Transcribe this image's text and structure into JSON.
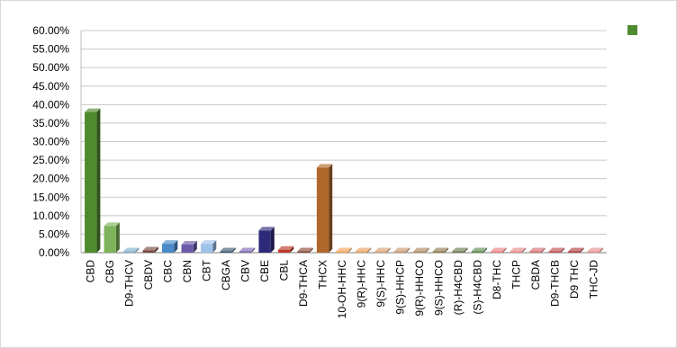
{
  "chart_data": {
    "type": "bar",
    "title": "",
    "xlabel": "",
    "ylabel": "",
    "ylim": [
      0,
      0.6
    ],
    "yticks": [
      0,
      0.05,
      0.1,
      0.15,
      0.2,
      0.25,
      0.3,
      0.35,
      0.4,
      0.45,
      0.5,
      0.55,
      0.6
    ],
    "ytick_labels": [
      "0.00%",
      "5.00%",
      "10.00%",
      "15.00%",
      "20.00%",
      "25.00%",
      "30.00%",
      "35.00%",
      "40.00%",
      "45.00%",
      "50.00%",
      "55.00%",
      "60.00%"
    ],
    "grid": true,
    "legend": {
      "position": "top-right",
      "color": "#4f8a2e"
    },
    "categories": [
      "CBD",
      "CBG",
      "D9-THCV",
      "CBDV",
      "CBC",
      "CBN",
      "CBT",
      "CBGA",
      "CBV",
      "CBE",
      "CBL",
      "D9-THCA",
      "THCX",
      "10-OH-HHC",
      "9(R)-HHC",
      "9(S)-HHC",
      "9(S)-HHCP",
      "9(R)-HHCO",
      "9(S)-HHCO",
      "(R)-H4CBD",
      "(S)-H4CBD",
      "D8-THC",
      "THCP",
      "CBDA",
      "D9-THCB",
      "D9 THC",
      "THC-JD"
    ],
    "values": [
      0.38,
      0.072,
      0.002,
      0.006,
      0.024,
      0.022,
      0.024,
      0.002,
      0.002,
      0.06,
      0.008,
      0.002,
      0.23,
      0.001,
      0.001,
      0.001,
      0.001,
      0.001,
      0.001,
      0.001,
      0.001,
      0.001,
      0.001,
      0.001,
      0.001,
      0.001,
      0.001
    ],
    "colors": [
      "#4f8a2e",
      "#7db35a",
      "#7fb0d0",
      "#7a4a44",
      "#4a8bc8",
      "#6a5aa8",
      "#9fc2ea",
      "#3c5a6e",
      "#7a66b0",
      "#2e2a7a",
      "#c0392b",
      "#8a4a3a",
      "#b0682a",
      "#f2a65a",
      "#e8a060",
      "#d9a070",
      "#c89a70",
      "#b08a60",
      "#8f7a50",
      "#6a7a50",
      "#5a8a50",
      "#e88080",
      "#e88a8a",
      "#d47070",
      "#c05050",
      "#b04040",
      "#e89090"
    ]
  }
}
